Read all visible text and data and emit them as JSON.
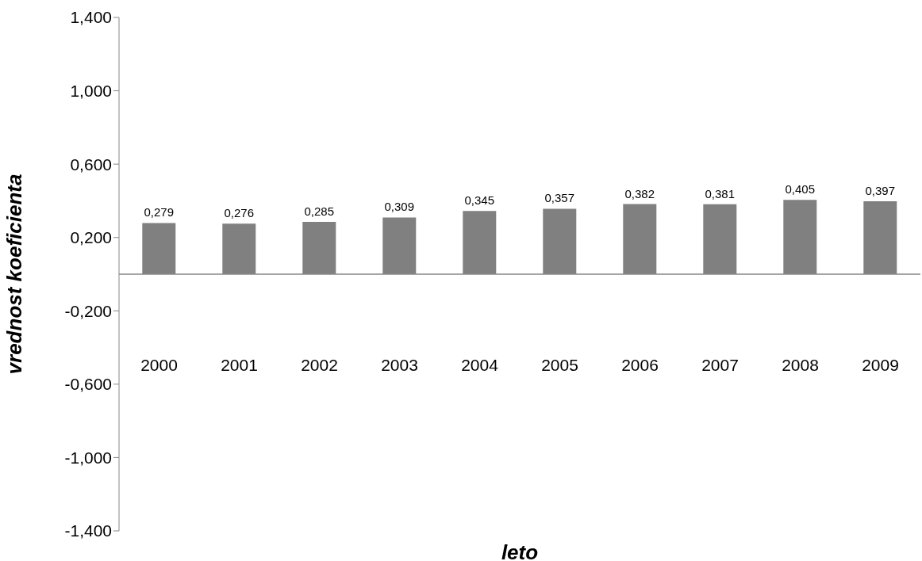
{
  "chart_data": {
    "type": "bar",
    "xlabel": "leto",
    "ylabel": "vrednost koeficienta",
    "categories": [
      "2000",
      "2001",
      "2002",
      "2003",
      "2004",
      "2005",
      "2006",
      "2007",
      "2008",
      "2009"
    ],
    "values": [
      0.279,
      0.276,
      0.285,
      0.309,
      0.345,
      0.357,
      0.382,
      0.381,
      0.405,
      0.397
    ],
    "value_labels": [
      "0,279",
      "0,276",
      "0,285",
      "0,309",
      "0,345",
      "0,357",
      "0,382",
      "0,381",
      "0,405",
      "0,397"
    ],
    "color": "#808080",
    "ylim": [
      -1.4,
      1.4
    ],
    "yticks": [
      {
        "value": -1.4,
        "label": "-1,400"
      },
      {
        "value": -1.0,
        "label": "-1,000"
      },
      {
        "value": -0.6,
        "label": "-0,600"
      },
      {
        "value": -0.2,
        "label": "-0,200"
      },
      {
        "value": 0.2,
        "label": "0,200"
      },
      {
        "value": 0.6,
        "label": "0,600"
      },
      {
        "value": 1.0,
        "label": "1,000"
      },
      {
        "value": 1.4,
        "label": "1,400"
      }
    ],
    "grid": false
  }
}
